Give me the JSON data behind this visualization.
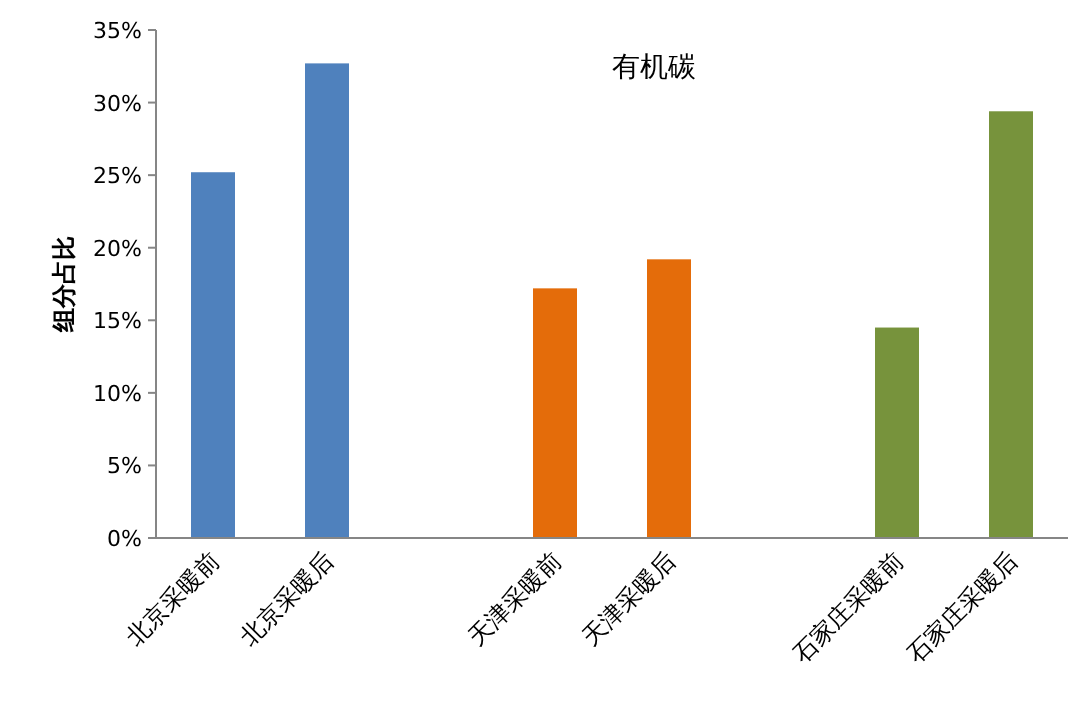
{
  "chart_data": {
    "type": "bar",
    "title": "有机碳",
    "ylabel": "组分占比",
    "categories": [
      "北京采暖前",
      "北京采暖后",
      null,
      "天津采暖前",
      "天津采暖后",
      null,
      "石家庄采暖前",
      "石家庄采暖后"
    ],
    "values": [
      25.2,
      32.7,
      null,
      17.2,
      19.2,
      null,
      14.5,
      29.4
    ],
    "colors": [
      "#4f81bd",
      "#4f81bd",
      null,
      "#e46c0a",
      "#e46c0a",
      null,
      "#77933c",
      "#77933c"
    ],
    "ylim": [
      0,
      35
    ],
    "yticks": [
      {
        "value": 0,
        "label": "0%"
      },
      {
        "value": 5,
        "label": "5%"
      },
      {
        "value": 10,
        "label": "10%"
      },
      {
        "value": 15,
        "label": "15%"
      },
      {
        "value": 20,
        "label": "20%"
      },
      {
        "value": 25,
        "label": "25%"
      },
      {
        "value": 30,
        "label": "30%"
      },
      {
        "value": 35,
        "label": "35%"
      }
    ],
    "grid": false
  }
}
